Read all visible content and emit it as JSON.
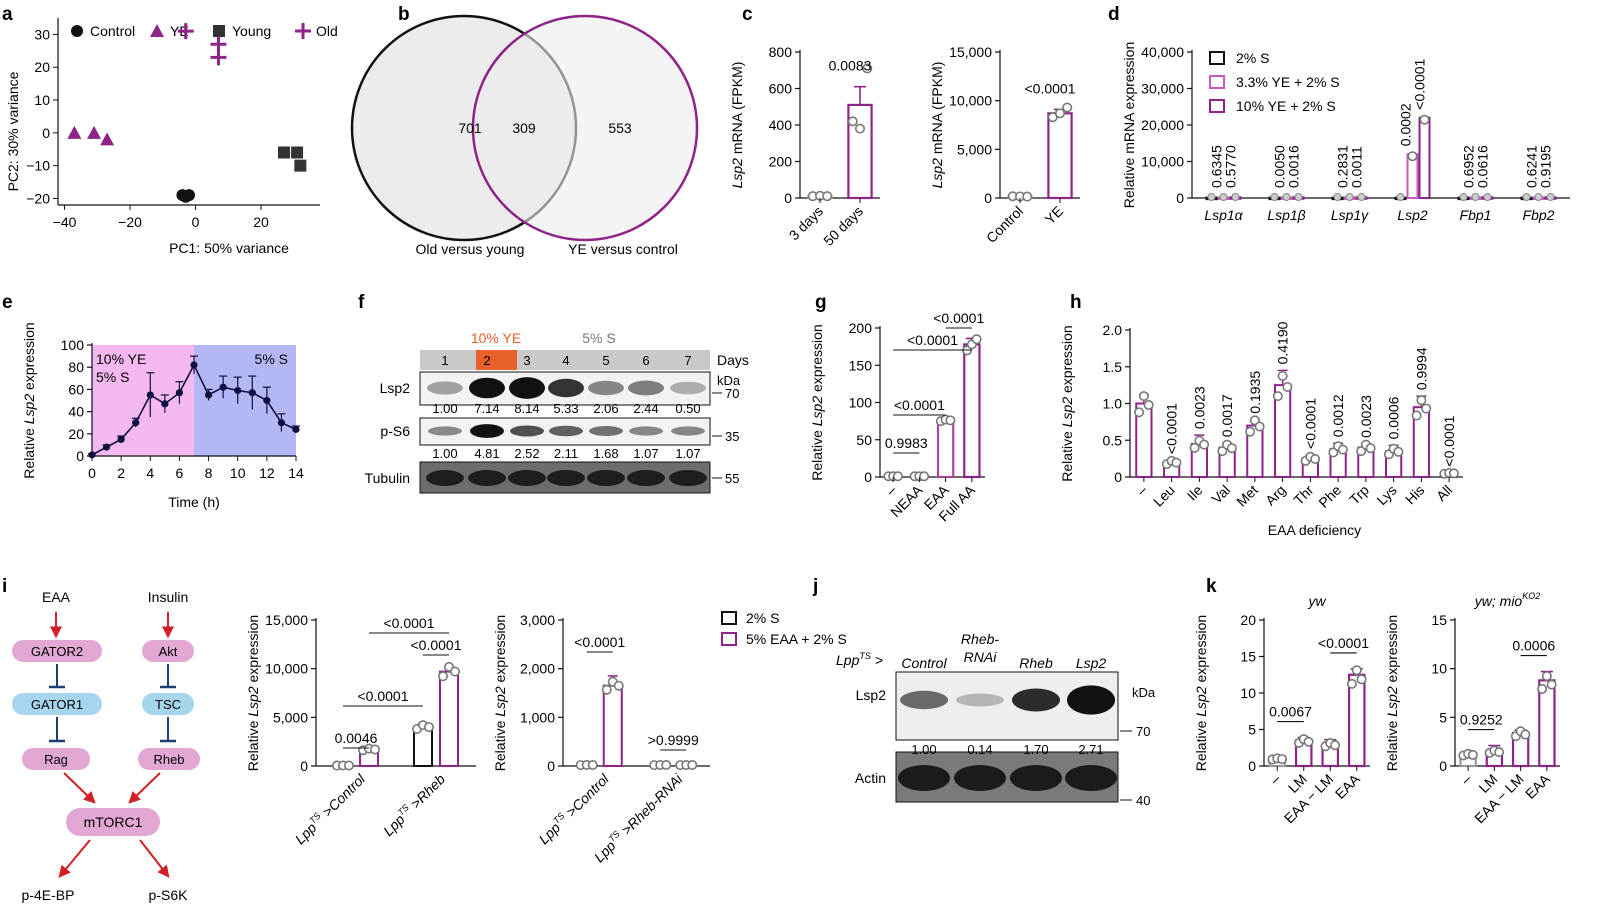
{
  "colors": {
    "purple": "#8e2388",
    "grey": "#9a9a9a",
    "black": "#111111",
    "orange": "#e8612a",
    "pink_bg": "#f6b8f0",
    "blue_bg": "#b3b7f3",
    "pathway_pink": "#e2a7d3",
    "pathway_blue": "#a6d6ee",
    "red": "#d31f26",
    "navy": "#1f3f73"
  },
  "panels": {
    "a": "a",
    "b": "b",
    "c": "c",
    "d": "d",
    "e": "e",
    "f": "f",
    "g": "g",
    "h": "h",
    "i": "i",
    "j": "j",
    "k": "k"
  },
  "panel_b": {
    "left_only": "701",
    "overlap": "309",
    "right_only": "553",
    "left_label": "Old versus young",
    "right_label": "YE versus control"
  },
  "panel_f": {
    "lanes": [
      "1",
      "2",
      "3",
      "4",
      "5",
      "6",
      "7"
    ],
    "days_label": "Days",
    "header_ye": "10% YE",
    "header_s": "5% S",
    "kda": "kDa",
    "rows": [
      {
        "label": "Lsp2",
        "marker": "70",
        "quant": [
          "1.00",
          "7.14",
          "8.14",
          "5.33",
          "2.06",
          "2.44",
          "0.50"
        ]
      },
      {
        "label": "p-S6",
        "marker": "35",
        "quant": [
          "1.00",
          "4.81",
          "2.52",
          "2.11",
          "1.68",
          "1.07",
          "1.07"
        ]
      },
      {
        "label": "Tubulin",
        "marker": "55",
        "quant": []
      }
    ]
  },
  "panel_i_pathway": {
    "eaa": "EAA",
    "insulin": "Insulin",
    "gator2": "GATOR2",
    "gator1": "GATOR1",
    "rag": "Rag",
    "akt": "Akt",
    "tsc": "TSC",
    "rheb": "Rheb",
    "mtorc1": "mTORC1",
    "p4ebp": "p-4E-BP",
    "ps6k": "p-S6K"
  },
  "panel_j": {
    "prefix": "Lpp",
    "prefix_sup": "TS",
    "prefix_tail": " >",
    "lanes": [
      [
        "Control"
      ],
      [
        "Rheb-",
        "RNAi"
      ],
      [
        "Rheb"
      ],
      [
        "Lsp2"
      ]
    ],
    "lsp2_label": "Lsp2",
    "actin_label": "Actin",
    "kda": "kDa",
    "marker_70": "70",
    "marker_40": "40",
    "quant": [
      "1.00",
      "0.14",
      "1.70",
      "2.71"
    ]
  },
  "chart_data": [
    {
      "id": "a",
      "type": "scatter",
      "xlabel": "PC1: 50% variance",
      "ylabel": "PC2: 30% variance",
      "xlim": [
        -42,
        38
      ],
      "ylim": [
        -22,
        35
      ],
      "xticks": [
        "−40",
        "−20",
        "0",
        "20"
      ],
      "xtick_vals": [
        -40,
        -20,
        0,
        20
      ],
      "yticks": [
        "−20",
        "−10",
        "0",
        "10",
        "20",
        "30"
      ],
      "ytick_vals": [
        -20,
        -10,
        0,
        10,
        20,
        30
      ],
      "series": [
        {
          "name": "Control",
          "marker": "circle",
          "color": "#111111",
          "points": [
            [
              -4,
              -19
            ],
            [
              -3,
              -19.5
            ],
            [
              -2,
              -19
            ]
          ]
        },
        {
          "name": "YE",
          "marker": "triangle",
          "color": "#8e2388",
          "points": [
            [
              -37,
              0
            ],
            [
              -31,
              0
            ],
            [
              -27,
              -2
            ]
          ]
        },
        {
          "name": "Young",
          "marker": "square",
          "color": "#333333",
          "points": [
            [
              27,
              -6
            ],
            [
              31,
              -6
            ],
            [
              32,
              -10
            ]
          ]
        },
        {
          "name": "Old",
          "marker": "plus",
          "color": "#8e2388",
          "points": [
            [
              -3,
              31
            ],
            [
              7,
              27
            ],
            [
              7,
              23
            ]
          ]
        }
      ]
    },
    {
      "id": "c1",
      "type": "bar",
      "ylabel": "Lsp2 mRNA (FPKM)",
      "ylim": [
        0,
        800
      ],
      "yticks": [
        "0",
        "200",
        "400",
        "600",
        "800"
      ],
      "ytick_vals": [
        0,
        200,
        400,
        600,
        800
      ],
      "categories": [
        "3 days",
        "50 days"
      ],
      "values": [
        10,
        510
      ],
      "errors": [
        5,
        100
      ],
      "colors": [
        "#9a9a9a",
        "#8e2388"
      ],
      "points": [
        [
          10,
          12,
          10
        ],
        [
          420,
          380,
          710
        ]
      ],
      "pvals": [
        {
          "between": [
            0,
            1
          ],
          "text": "0.0083"
        }
      ]
    },
    {
      "id": "c2",
      "type": "bar",
      "ylabel": "Lsp2 mRNA (FPKM)",
      "ylim": [
        0,
        15000
      ],
      "yticks": [
        "0",
        "5,000",
        "10,000",
        "15,000"
      ],
      "ytick_vals": [
        0,
        5000,
        10000,
        15000
      ],
      "categories": [
        "Control",
        "YE"
      ],
      "values": [
        150,
        8700
      ],
      "errors": [
        50,
        400
      ],
      "colors": [
        "#9a9a9a",
        "#8e2388"
      ],
      "points": [
        [
          180,
          160,
          150
        ],
        [
          8300,
          8700,
          9300
        ]
      ],
      "pvals": [
        {
          "between": [
            0,
            1
          ],
          "text": "<0.0001"
        }
      ]
    },
    {
      "id": "d",
      "type": "bar",
      "ylabel": "Relative mRNA expression",
      "ylim": [
        0,
        40000
      ],
      "yticks": [
        "0",
        "10,000",
        "20,000",
        "30,000",
        "40,000"
      ],
      "ytick_vals": [
        0,
        10000,
        20000,
        30000,
        40000
      ],
      "categories": [
        "Lsp1α",
        "Lsp1β",
        "Lsp1γ",
        "Lsp2",
        "Fbp1",
        "Fbp2"
      ],
      "series": [
        {
          "name": "2% S",
          "color": "#111111",
          "values": [
            100,
            100,
            100,
            100,
            100,
            100
          ]
        },
        {
          "name": "3.3% YE + 2% S",
          "color": "#c55bbf",
          "values": [
            150,
            150,
            150,
            12000,
            150,
            150
          ]
        },
        {
          "name": "10% YE + 2% S",
          "color": "#8e2388",
          "values": [
            200,
            200,
            200,
            22000,
            200,
            200
          ]
        }
      ],
      "pvals": [
        [
          "0.6345",
          "0.5770"
        ],
        [
          "0.0050",
          "0.0016"
        ],
        [
          "0.2831",
          "0.0011"
        ],
        [
          "0.0002",
          "<0.0001"
        ],
        [
          "0.6952",
          "0.0616"
        ],
        [
          "0.6241",
          "0.9195"
        ]
      ]
    },
    {
      "id": "e",
      "type": "line",
      "xlabel": "Time (h)",
      "ylabel": "Relative Lsp2 expression",
      "xlim": [
        0,
        14
      ],
      "ylim": [
        0,
        100
      ],
      "xticks": [
        "0",
        "2",
        "4",
        "6",
        "8",
        "10",
        "12",
        "14"
      ],
      "xtick_vals": [
        0,
        2,
        4,
        6,
        8,
        10,
        12,
        14
      ],
      "yticks": [
        "0",
        "20",
        "40",
        "60",
        "80",
        "100"
      ],
      "ytick_vals": [
        0,
        20,
        40,
        60,
        80,
        100
      ],
      "region_labels": [
        [
          "10% YE",
          "5% S"
        ],
        [
          "5% S"
        ]
      ],
      "region_split": 7,
      "x": [
        0,
        1,
        2,
        3,
        4,
        5,
        6,
        7,
        8,
        9,
        10,
        11,
        12,
        13,
        14
      ],
      "y": [
        1,
        8,
        15,
        30,
        55,
        47,
        57,
        82,
        55,
        62,
        59,
        57,
        50,
        30,
        24
      ],
      "err": [
        1,
        2,
        3,
        4,
        20,
        8,
        10,
        8,
        5,
        10,
        12,
        15,
        12,
        8,
        3
      ]
    },
    {
      "id": "g",
      "type": "bar",
      "ylabel": "Relative Lsp2 expression",
      "ylim": [
        0,
        200
      ],
      "yticks": [
        "0",
        "50",
        "100",
        "150",
        "200"
      ],
      "ytick_vals": [
        0,
        50,
        100,
        150,
        200
      ],
      "categories": [
        "–",
        "NEAA",
        "EAA",
        "Full AA"
      ],
      "values": [
        1,
        1,
        75,
        178
      ],
      "errors": [
        0.5,
        0.5,
        2,
        8
      ],
      "colors": [
        "#9a9a9a",
        "#c55bbf",
        "#a8479f",
        "#8e2388"
      ],
      "points": [
        [
          1,
          1,
          1
        ],
        [
          1,
          1,
          1
        ],
        [
          75,
          77,
          76
        ],
        [
          170,
          178,
          185
        ]
      ],
      "pvals": [
        {
          "between": [
            0,
            1
          ],
          "text": "0.9983",
          "level": 0
        },
        {
          "between": [
            0,
            2
          ],
          "text": "<0.0001",
          "level": 1
        },
        {
          "between": [
            0,
            3
          ],
          "text": "<0.0001",
          "level": 2
        },
        {
          "between": [
            2,
            3
          ],
          "text": "<0.0001",
          "level": 3
        }
      ]
    },
    {
      "id": "h",
      "type": "bar",
      "xlabel": "EAA deficiency",
      "ylabel": "Relative Lsp2 expression",
      "ylim": [
        0,
        2
      ],
      "yticks": [
        "0",
        "0.5",
        "1.0",
        "1.5",
        "2.0"
      ],
      "ytick_vals": [
        0,
        0.5,
        1,
        1.5,
        2
      ],
      "categories": [
        "–",
        "Leu",
        "Ile",
        "Val",
        "Met",
        "Arg",
        "Thr",
        "Phe",
        "Trp",
        "Lys",
        "His",
        "All"
      ],
      "values": [
        1.0,
        0.2,
        0.45,
        0.4,
        0.7,
        1.25,
        0.25,
        0.38,
        0.4,
        0.35,
        0.95,
        0.05
      ],
      "errors": [
        0.12,
        0.03,
        0.12,
        0.06,
        0.08,
        0.2,
        0.05,
        0.08,
        0.05,
        0.08,
        0.15,
        0.01
      ],
      "pvals": [
        "",
        "<0.0001",
        "0.0023",
        "0.0017",
        "0.1935",
        "0.4190",
        "<0.0001",
        "0.0012",
        "0.0023",
        "0.0006",
        "0.9994",
        "<0.0001"
      ]
    },
    {
      "id": "i1",
      "type": "bar",
      "ylabel": "Relative Lsp2 expression",
      "ylim": [
        0,
        15000
      ],
      "yticks": [
        "0",
        "5,000",
        "10,000",
        "15,000"
      ],
      "ytick_vals": [
        0,
        5000,
        10000,
        15000
      ],
      "groups": [
        "Control",
        "Rheb"
      ],
      "group_prefix": "Lpp",
      "group_sup": "TS",
      "group_arrow": " >",
      "values": [
        [
          50,
          1700
        ],
        [
          4000,
          9700
        ]
      ],
      "errors": [
        [
          20,
          200
        ],
        [
          300,
          400
        ]
      ],
      "pvals": [
        {
          "a": 0,
          "b": 1,
          "text": "0.0046",
          "level": 0
        },
        {
          "a": 0,
          "b": 2,
          "text": "<0.0001",
          "level": 1
        },
        {
          "a": 2,
          "b": 3,
          "text": "<0.0001",
          "level": 2
        },
        {
          "a": 1,
          "b": 3,
          "text": "<0.0001",
          "level": 3
        }
      ]
    },
    {
      "id": "i2",
      "type": "bar",
      "ylabel": "Relative Lsp2 expression",
      "ylim": [
        0,
        3000
      ],
      "yticks": [
        "0",
        "1,000",
        "2,000",
        "3,000"
      ],
      "ytick_vals": [
        0,
        1000,
        2000,
        3000
      ],
      "groups": [
        "Control",
        "Rheb-RNAi"
      ],
      "group_prefix": "Lpp",
      "group_sup": "TS",
      "group_arrow": " >",
      "values": [
        [
          20,
          1650
        ],
        [
          20,
          20
        ]
      ],
      "errors": [
        [
          5,
          200
        ],
        [
          5,
          5
        ]
      ],
      "legend": [
        {
          "name": "2% S",
          "color": "#111111"
        },
        {
          "name": "5% EAA + 2% S",
          "color": "#8e2388"
        }
      ],
      "pvals": [
        {
          "a": 0,
          "b": 1,
          "text": "<0.0001"
        },
        {
          "a": 2,
          "b": 3,
          "text": ">0.9999"
        }
      ]
    },
    {
      "id": "k1",
      "type": "bar",
      "title": "yw",
      "ylabel": "Relative Lsp2 expression",
      "ylim": [
        0,
        20
      ],
      "yticks": [
        "0",
        "5",
        "10",
        "15",
        "20"
      ],
      "ytick_vals": [
        0,
        5,
        10,
        15,
        20
      ],
      "categories": [
        "–",
        "LM",
        "EAA − LM",
        "EAA"
      ],
      "values": [
        1,
        3.5,
        3,
        12.5
      ],
      "errors": [
        0.2,
        0.4,
        0.6,
        0.8
      ],
      "colors": [
        "#9a9a9a",
        "#8e2388",
        "#8e2388",
        "#8e2388"
      ],
      "pvals": [
        {
          "between": [
            0,
            1
          ],
          "text": "0.0067"
        },
        {
          "between": [
            2,
            3
          ],
          "text": "<0.0001"
        }
      ]
    },
    {
      "id": "k2",
      "type": "bar",
      "title": "yw; mio",
      "title_sup": "KO2",
      "ylabel": "Relative Lsp2 expression",
      "ylim": [
        0,
        15
      ],
      "yticks": [
        "0",
        "5",
        "10",
        "15"
      ],
      "ytick_vals": [
        0,
        5,
        10,
        15
      ],
      "categories": [
        "–",
        "LM",
        "EAA − LM",
        "EAA"
      ],
      "values": [
        1.2,
        1.5,
        3.4,
        8.8
      ],
      "errors": [
        0.2,
        0.6,
        0.3,
        0.9
      ],
      "colors": [
        "#9a9a9a",
        "#8e2388",
        "#8e2388",
        "#8e2388"
      ],
      "pvals": [
        {
          "between": [
            0,
            1
          ],
          "text": "0.9252"
        },
        {
          "between": [
            2,
            3
          ],
          "text": "0.0006"
        }
      ]
    }
  ]
}
